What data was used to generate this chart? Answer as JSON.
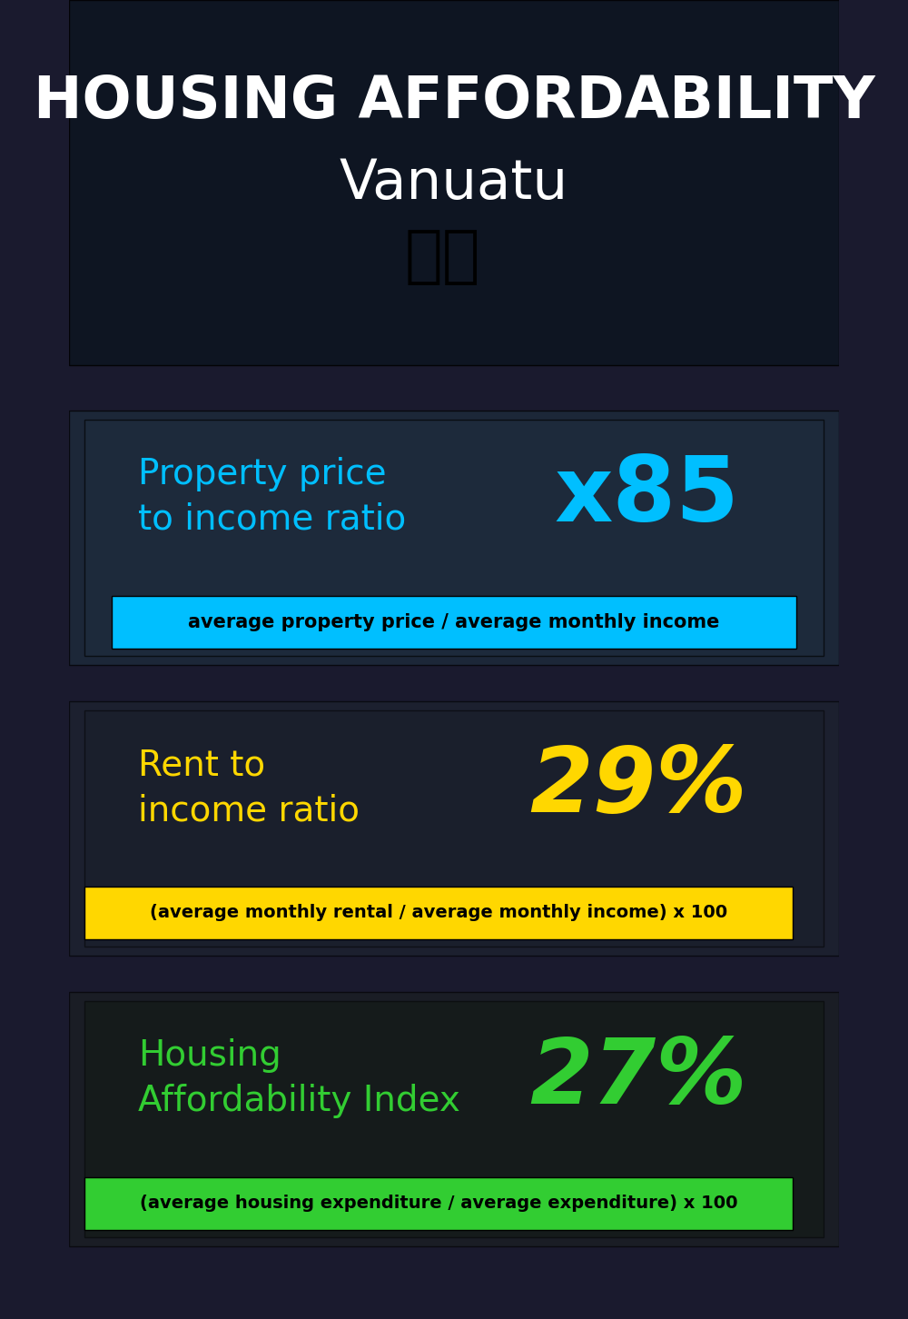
{
  "title_line1": "HOUSING AFFORDABILITY",
  "title_line2": "Vanuatu",
  "flag_emoji": "🇺🇾",
  "section1_label": "Property price\nto income ratio",
  "section1_value": "x85",
  "section1_label_color": "#00bfff",
  "section1_value_color": "#00bfff",
  "section1_formula": "average property price / average monthly income",
  "section1_formula_bg": "#00bfff",
  "section2_label": "Rent to\nincome ratio",
  "section2_value": "29%",
  "section2_label_color": "#FFD700",
  "section2_value_color": "#FFD700",
  "section2_formula": "(average monthly rental / average monthly income) x 100",
  "section2_formula_bg": "#FFD700",
  "section3_label": "Housing\nAffordability Index",
  "section3_value": "27%",
  "section3_label_color": "#32CD32",
  "section3_value_color": "#32CD32",
  "section3_formula": "(average housing expenditure / average expenditure) x 100",
  "section3_formula_bg": "#32CD32",
  "bg_color": "#1a1a2e",
  "text_color": "#ffffff",
  "overlay_color_top": "#1a2535",
  "overlay_alpha": 0.55
}
